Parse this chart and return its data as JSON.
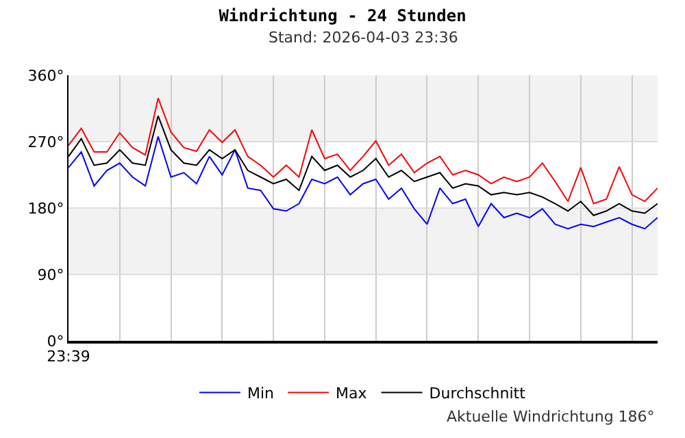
{
  "chart_data": {
    "type": "line",
    "title": "Windrichtung - 24 Stunden",
    "subtitle": "Stand: 2026-04-03 23:36",
    "categories": [
      "23:39",
      null,
      null,
      null,
      null,
      null,
      null,
      null,
      null,
      null,
      null,
      null,
      null,
      null,
      null,
      null,
      null,
      null,
      null,
      null,
      null,
      null,
      null,
      null,
      null,
      null,
      null,
      null,
      null,
      null,
      null,
      null,
      null,
      null,
      null,
      null,
      null,
      null,
      null,
      null,
      null,
      null,
      null,
      null,
      null,
      null,
      null
    ],
    "series": [
      {
        "name": "Min",
        "color": "#0000ff",
        "values": [
          235,
          256,
          210,
          231,
          241,
          222,
          210,
          277,
          222,
          228,
          213,
          250,
          225,
          259,
          207,
          204,
          179,
          176,
          186,
          219,
          213,
          222,
          198,
          213,
          219,
          192,
          207,
          179,
          158,
          207,
          186,
          192,
          155,
          186,
          167,
          173,
          167,
          179,
          158,
          152,
          158,
          155,
          161,
          167,
          158,
          152,
          167
        ]
      },
      {
        "name": "Max",
        "color": "#ff0000",
        "values": [
          265,
          288,
          256,
          256,
          282,
          262,
          252,
          329,
          283,
          262,
          257,
          286,
          269,
          286,
          250,
          238,
          222,
          238,
          222,
          286,
          247,
          253,
          231,
          250,
          271,
          238,
          253,
          228,
          241,
          250,
          225,
          231,
          225,
          213,
          222,
          216,
          222,
          241,
          216,
          189,
          235,
          186,
          192,
          236,
          198,
          189,
          207
        ]
      },
      {
        "name": "Durchschnitt",
        "color": "#000000",
        "values": [
          250,
          274,
          238,
          241,
          259,
          241,
          238,
          305,
          259,
          241,
          238,
          259,
          247,
          259,
          231,
          222,
          213,
          219,
          204,
          250,
          231,
          238,
          222,
          231,
          247,
          222,
          231,
          216,
          222,
          228,
          207,
          213,
          210,
          198,
          201,
          198,
          201,
          195,
          186,
          176,
          189,
          170,
          176,
          186,
          176,
          173,
          186
        ]
      }
    ],
    "ylim": [
      0,
      360
    ],
    "yticks": [
      {
        "value": 0,
        "label": "0°"
      },
      {
        "value": 90,
        "label": "90°"
      },
      {
        "value": 180,
        "label": "180°"
      },
      {
        "value": 270,
        "label": "270°"
      },
      {
        "value": 360,
        "label": "360°"
      }
    ],
    "bands": [
      {
        "axis": "y",
        "from": 90,
        "to": 180,
        "color": "#f2f2f2"
      },
      {
        "axis": "y",
        "from": 270,
        "to": 360,
        "color": "#f2f2f2"
      }
    ],
    "grid": true,
    "legend": "bottom",
    "marker": "none",
    "line_style": "solid",
    "annotations": [
      "Aktuelle Windrichtung 186°"
    ]
  }
}
